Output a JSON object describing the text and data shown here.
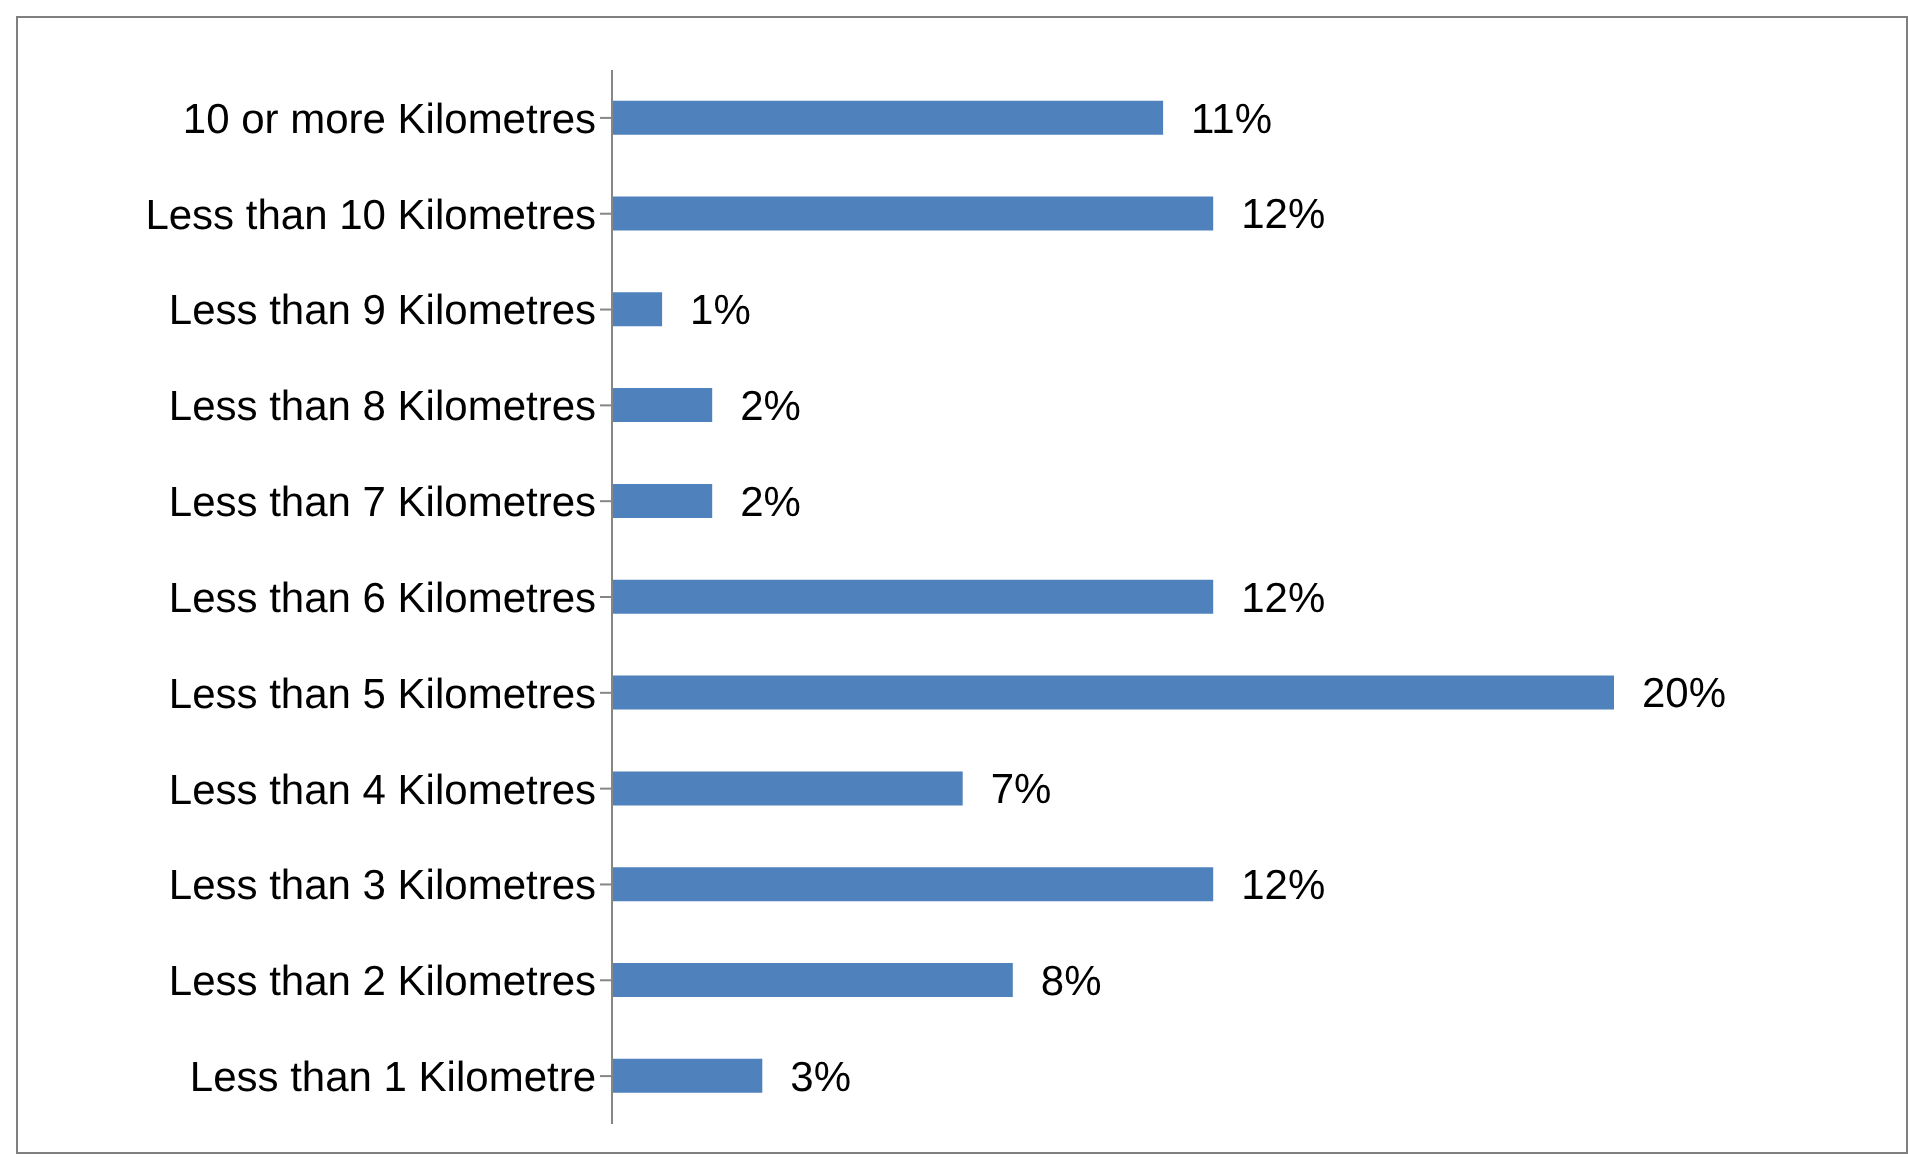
{
  "chart_data": {
    "type": "bar",
    "orientation": "horizontal",
    "categories": [
      "10 or more Kilometres",
      "Less than 10 Kilometres",
      "Less than 9 Kilometres",
      "Less than 8 Kilometres",
      "Less than 7 Kilometres",
      "Less than 6 Kilometres",
      "Less than 5 Kilometres",
      "Less than 4 Kilometres",
      "Less than 3 Kilometres",
      "Less than 2 Kilometres",
      "Less than 1 Kilometre"
    ],
    "values": [
      11,
      12,
      1,
      2,
      2,
      12,
      20,
      7,
      12,
      8,
      3
    ],
    "value_labels": [
      "11%",
      "12%",
      "1%",
      "2%",
      "2%",
      "12%",
      "20%",
      "7%",
      "12%",
      "8%",
      "3%"
    ],
    "color": "#4f81bd",
    "grid": false,
    "legend": false
  }
}
